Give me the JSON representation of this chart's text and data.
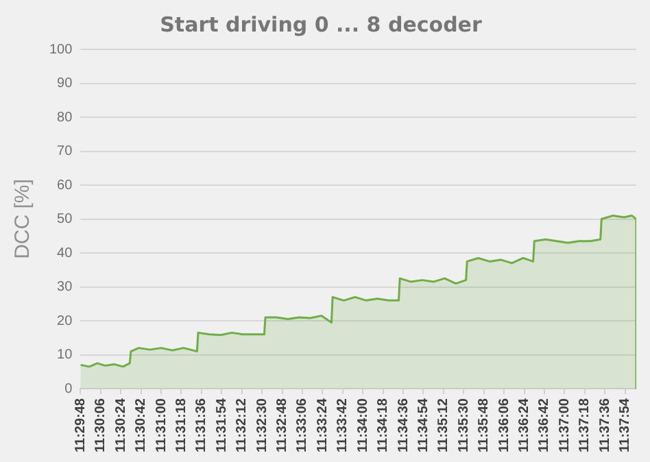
{
  "chart_data": {
    "type": "area",
    "title": "Start driving 0 ... 8 decoder",
    "ylabel": "DCC [%]",
    "x": [
      11.49667,
      11.49889,
      11.50084,
      11.50278,
      11.505,
      11.50723,
      11.50889,
      11.50917,
      11.51111,
      11.51389,
      11.51667,
      11.51945,
      11.52223,
      11.52556,
      11.52584,
      11.52861,
      11.53139,
      11.53417,
      11.53695,
      11.53973,
      11.54223,
      11.5425,
      11.54528,
      11.54806,
      11.55084,
      11.55361,
      11.55639,
      11.55889,
      11.55917,
      11.56195,
      11.56473,
      11.5675,
      11.57028,
      11.57306,
      11.57556,
      11.57584,
      11.57861,
      11.58139,
      11.58417,
      11.58695,
      11.58973,
      11.59223,
      11.5925,
      11.59528,
      11.59806,
      11.60084,
      11.60361,
      11.60639,
      11.60889,
      11.60917,
      11.61195,
      11.61473,
      11.6175,
      11.62028,
      11.62306,
      11.62556,
      11.62584,
      11.62861,
      11.63139,
      11.63334,
      11.63445,
      11.63445
    ],
    "series": [
      {
        "color": "#70ad47",
        "values": [
          7,
          6.5,
          7.5,
          6.8,
          7.2,
          6.5,
          7.5,
          11,
          12,
          11.5,
          12,
          11.3,
          12,
          11,
          16.5,
          16,
          15.8,
          16.5,
          16,
          16,
          16,
          21,
          21,
          20.5,
          21,
          20.8,
          21.5,
          19.5,
          27,
          26,
          27,
          26,
          26.5,
          26,
          26,
          32.5,
          31.5,
          32,
          31.5,
          32.5,
          31,
          32,
          37.5,
          38.5,
          37.5,
          38,
          37,
          38.5,
          37.5,
          43.5,
          44,
          43.5,
          43,
          43.5,
          43.5,
          44,
          50,
          51,
          50.5,
          51,
          50,
          0
        ]
      }
    ],
    "xlim": [
      11.49667,
      11.63445
    ],
    "xticks": [
      {
        "value": 11.49667,
        "label": "11:29:48"
      },
      {
        "value": 11.50167,
        "label": "11:30:06"
      },
      {
        "value": 11.50667,
        "label": "11:30:24"
      },
      {
        "value": 11.51167,
        "label": "11:30:42"
      },
      {
        "value": 11.51667,
        "label": "11:31:00"
      },
      {
        "value": 11.52167,
        "label": "11:31:18"
      },
      {
        "value": 11.52667,
        "label": "11:31:36"
      },
      {
        "value": 11.53167,
        "label": "11:31:54"
      },
      {
        "value": 11.53667,
        "label": "11:32:12"
      },
      {
        "value": 11.54167,
        "label": "11:32:30"
      },
      {
        "value": 11.54667,
        "label": "11:32:48"
      },
      {
        "value": 11.55167,
        "label": "11:33:06"
      },
      {
        "value": 11.55667,
        "label": "11:33:24"
      },
      {
        "value": 11.56167,
        "label": "11:33:42"
      },
      {
        "value": 11.56667,
        "label": "11:34:00"
      },
      {
        "value": 11.57167,
        "label": "11:34:18"
      },
      {
        "value": 11.57667,
        "label": "11:34:36"
      },
      {
        "value": 11.58167,
        "label": "11:34:54"
      },
      {
        "value": 11.58667,
        "label": "11:35:12"
      },
      {
        "value": 11.59167,
        "label": "11:35:30"
      },
      {
        "value": 11.59667,
        "label": "11:35:48"
      },
      {
        "value": 11.60167,
        "label": "11:36:06"
      },
      {
        "value": 11.60667,
        "label": "11:36:24"
      },
      {
        "value": 11.61167,
        "label": "11:36:42"
      },
      {
        "value": 11.61667,
        "label": "11:37:00"
      },
      {
        "value": 11.62167,
        "label": "11:37:18"
      },
      {
        "value": 11.62667,
        "label": "11:37:36"
      },
      {
        "value": 11.63167,
        "label": "11:37:54"
      }
    ],
    "ylim": [
      0,
      100
    ],
    "yticks": [
      0,
      10,
      20,
      30,
      40,
      50,
      60,
      70,
      80,
      90,
      100
    ],
    "grid": "y"
  }
}
